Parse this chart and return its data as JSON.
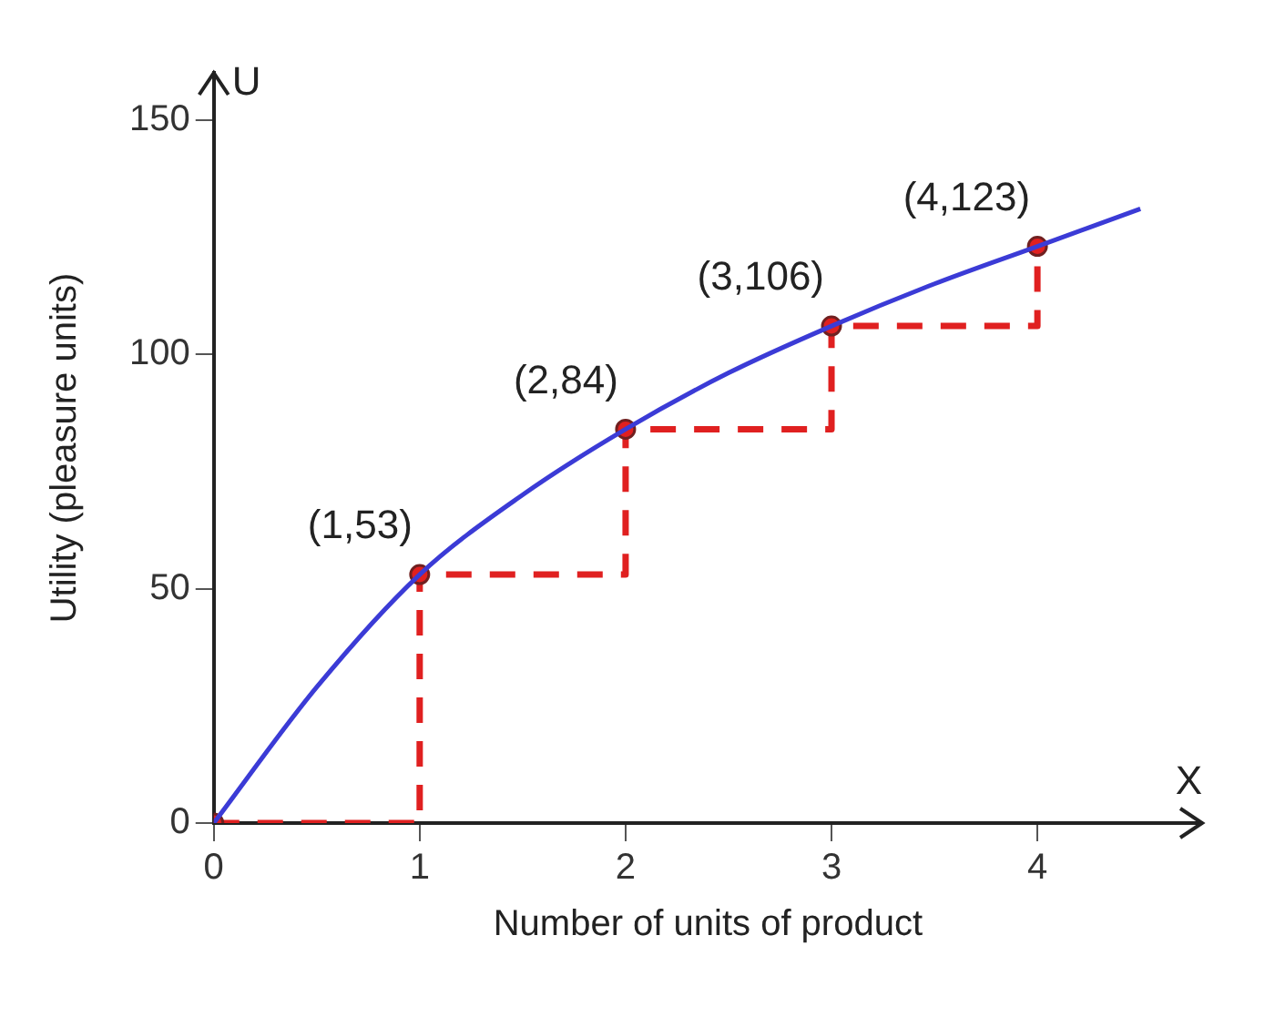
{
  "chart_data": {
    "type": "line",
    "xlabel": "Number of units of product",
    "ylabel": "Utility (pleasure units)",
    "xlim": [
      0,
      4.8
    ],
    "ylim": [
      0,
      160
    ],
    "xticks": [
      0,
      1,
      2,
      3,
      4
    ],
    "yticks": [
      0,
      50,
      100,
      150
    ],
    "grid": false,
    "legend": false,
    "series": [
      {
        "type": "line",
        "color": "#3b3bd6",
        "x": [
          0,
          0.5,
          1,
          1.5,
          2,
          2.5,
          3,
          3.5,
          4,
          4.5
        ],
        "values": [
          0,
          29,
          53,
          70,
          84,
          96,
          106,
          115,
          123,
          131
        ],
        "marker": "none",
        "line_style": "solid"
      },
      {
        "type": "step",
        "color": "#e02020",
        "x": [
          0,
          1,
          2,
          3,
          4
        ],
        "values": [
          0,
          53,
          84,
          106,
          123
        ],
        "marker": "circle",
        "line_style": "dashed"
      }
    ],
    "annotations": [
      "U",
      "X",
      {
        "text": "(1,53)",
        "x": 1,
        "y": 53
      },
      {
        "text": "(2,84)",
        "x": 2,
        "y": 84
      },
      {
        "text": "(3,106)",
        "x": 3,
        "y": 106
      },
      {
        "text": "(4,123)",
        "x": 4,
        "y": 123
      }
    ]
  }
}
